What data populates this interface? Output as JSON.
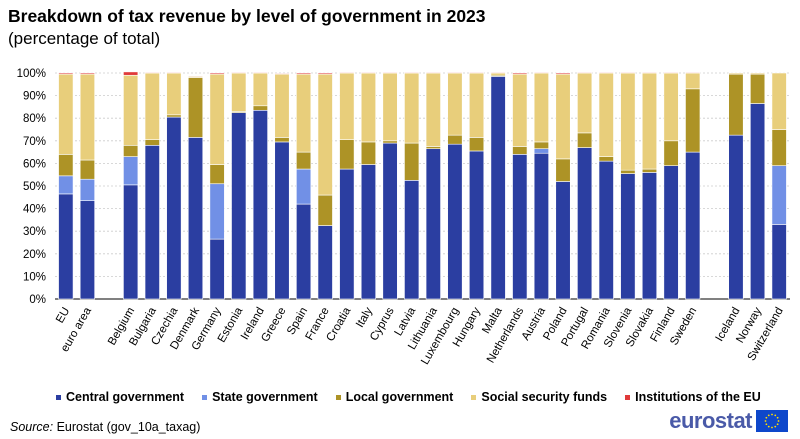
{
  "title": "Breakdown of tax revenue by level of government in 2023",
  "subtitle": "(percentage of total)",
  "source_label": "Source:",
  "source_text": "Eurostat (gov_10a_taxag)",
  "logo_text": "eurostat",
  "chart_data": {
    "type": "bar",
    "stacked": true,
    "title": "Breakdown of tax revenue by level of government in 2023",
    "ylabel": "",
    "xlabel": "",
    "ylim": [
      0,
      100
    ],
    "yticks": [
      "0%",
      "10%",
      "20%",
      "30%",
      "40%",
      "50%",
      "60%",
      "70%",
      "80%",
      "90%",
      "100%"
    ],
    "grid": true,
    "legend_position": "bottom",
    "categories": [
      "EU",
      "euro area",
      "",
      "Belgium",
      "Bulgaria",
      "Czechia",
      "Denmark",
      "Germany",
      "Estonia",
      "Ireland",
      "Greece",
      "Spain",
      "France",
      "Croatia",
      "Italy",
      "Cyprus",
      "Latvia",
      "Lithuania",
      "Luxembourg",
      "Hungary",
      "Malta",
      "Netherlands",
      "Austria",
      "Poland",
      "Portugal",
      "Romania",
      "Slovenia",
      "Slovakia",
      "Finland",
      "Sweden",
      "",
      "Iceland",
      "Norway",
      "Switzerland"
    ],
    "series": [
      {
        "name": "Central government",
        "color": "#2b3ea1",
        "values": [
          46.5,
          43.5,
          null,
          50.5,
          68,
          80.5,
          71.5,
          26.5,
          82.5,
          83.5,
          69.5,
          42,
          32.5,
          57.5,
          59.5,
          69,
          52.5,
          66.5,
          68.5,
          65.5,
          98.5,
          64,
          64.5,
          52,
          67,
          61,
          55.5,
          56,
          59,
          65,
          null,
          72.5,
          86.5,
          33
        ]
      },
      {
        "name": "State government",
        "color": "#7190e6",
        "values": [
          8,
          9.5,
          null,
          12.5,
          0,
          0,
          0,
          24.5,
          0,
          0,
          0,
          15.5,
          0,
          0,
          0,
          0,
          0,
          0,
          0,
          0,
          0,
          0,
          2,
          0,
          0,
          0,
          0,
          0,
          0,
          0,
          null,
          0,
          0,
          26
        ]
      },
      {
        "name": "Local government",
        "color": "#ad9326",
        "values": [
          9.5,
          8.5,
          null,
          5,
          2.5,
          1,
          26.5,
          8.5,
          0.5,
          2,
          2,
          7.5,
          13.5,
          13,
          10,
          1,
          16.5,
          1,
          4,
          6,
          0.5,
          3.5,
          3,
          10,
          6.5,
          2,
          1.5,
          1.5,
          11,
          28,
          null,
          27,
          13,
          16
        ]
      },
      {
        "name": "Social security funds",
        "color": "#e8ce7b",
        "values": [
          35.5,
          38,
          null,
          31,
          29.5,
          18.5,
          0.5,
          40,
          17,
          14.5,
          28,
          34.5,
          53.5,
          29.5,
          30.5,
          30,
          31,
          32.5,
          27.5,
          28.5,
          1,
          32,
          30.5,
          37.5,
          26.5,
          37,
          43,
          42.5,
          30,
          7,
          null,
          0.5,
          0.5,
          25
        ]
      },
      {
        "name": "Institutions of the EU",
        "color": "#e03a3a",
        "values": [
          0.5,
          0.5,
          null,
          1.5,
          0.3,
          0.3,
          0.3,
          0.5,
          0.3,
          0.3,
          0.3,
          0.5,
          0.5,
          0.3,
          0.3,
          0.3,
          0.3,
          0.3,
          0.3,
          0.3,
          0.3,
          0.5,
          0.3,
          0.5,
          0.3,
          0.3,
          0.3,
          0.3,
          0.3,
          0.3,
          null,
          0,
          0,
          0
        ]
      }
    ]
  }
}
